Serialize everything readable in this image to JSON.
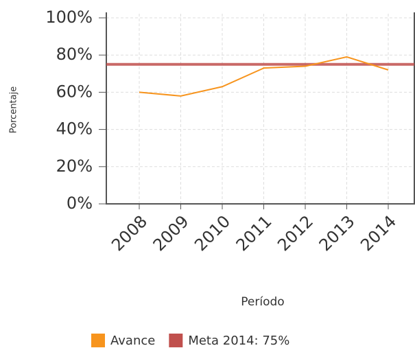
{
  "chart_data": {
    "type": "line",
    "y_label": "Porcentaje",
    "x_label": "Período",
    "categories": [
      "2008",
      "2009",
      "2010",
      "2011",
      "2012",
      "2013",
      "2014"
    ],
    "series": [
      {
        "name": "Avance",
        "color": "#f7941d",
        "values": [
          60,
          58,
          63,
          73,
          74,
          79,
          72
        ]
      }
    ],
    "target": {
      "name": "Meta 2014: 75%",
      "color": "#c0504d",
      "value": 75
    },
    "ylim": [
      0,
      100
    ],
    "yticks": [
      {
        "value": 0,
        "label": "0%"
      },
      {
        "value": 20,
        "label": "20%"
      },
      {
        "value": 40,
        "label": "40%"
      },
      {
        "value": 60,
        "label": "60%"
      },
      {
        "value": 80,
        "label": "80%"
      },
      {
        "value": 100,
        "label": "100%"
      }
    ],
    "grid": true
  }
}
